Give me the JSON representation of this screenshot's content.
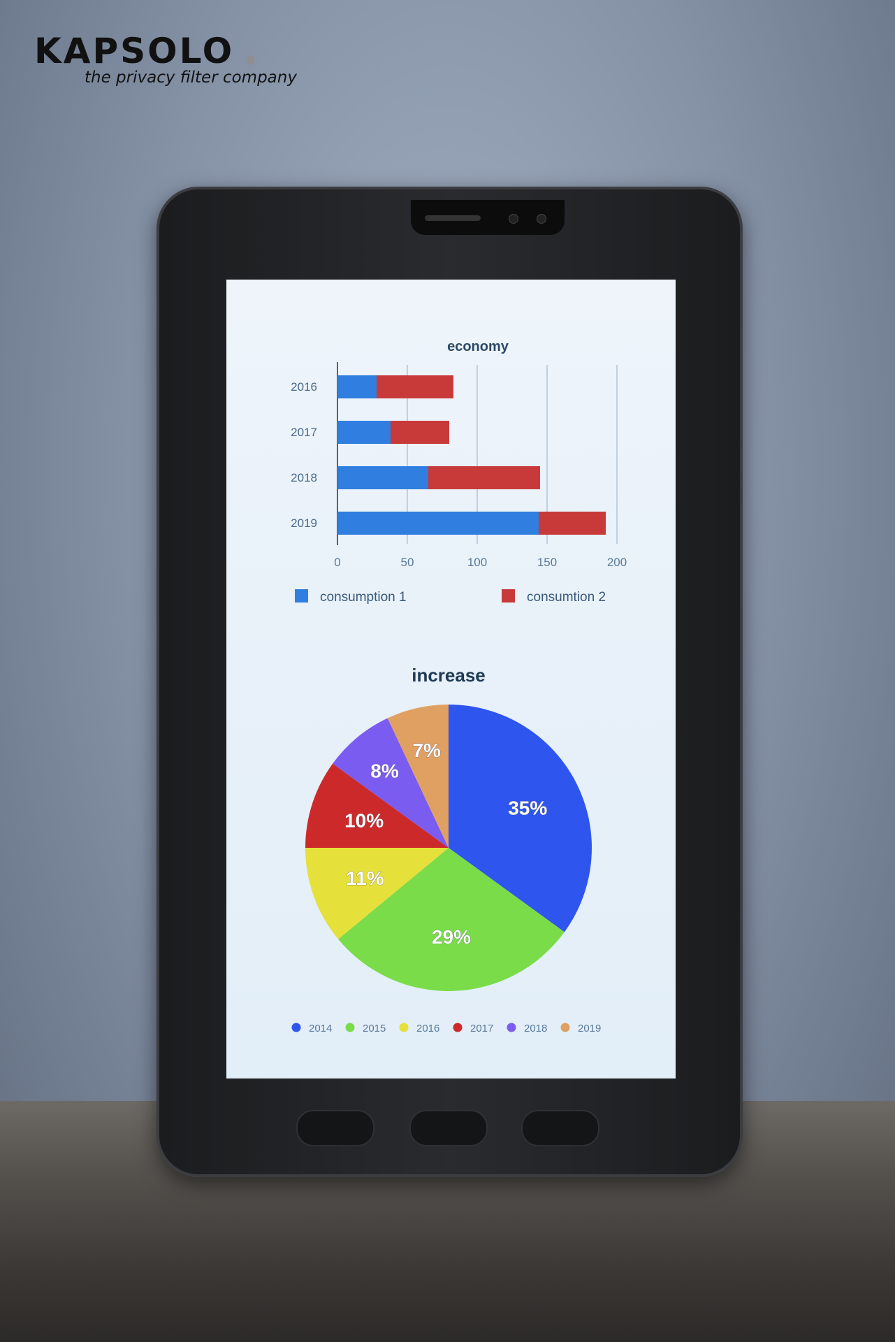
{
  "logo": {
    "brand": "KAPSOLO",
    "tagline": "the privacy filter company"
  },
  "chart_data": [
    {
      "type": "bar",
      "orientation": "horizontal",
      "stacked": true,
      "title": "economy",
      "categories": [
        "2016",
        "2017",
        "2018",
        "2019"
      ],
      "series": [
        {
          "name": "consumption  1",
          "color": "#2f7ee0",
          "values": [
            28,
            38,
            65,
            144
          ]
        },
        {
          "name": "consumtion 2",
          "color": "#c83a3a",
          "values": [
            55,
            42,
            80,
            48
          ]
        }
      ],
      "xlim": [
        0,
        200
      ],
      "xticks": [
        "0",
        "50",
        "100",
        "150",
        "200"
      ],
      "grid": true,
      "legend": "bottom"
    },
    {
      "type": "pie",
      "title": "increase",
      "slices": [
        {
          "label": "2014",
          "value": 35,
          "text": "35%",
          "color": "#2e55ee"
        },
        {
          "label": "2015",
          "value": 29,
          "text": "29%",
          "color": "#7bdc4a"
        },
        {
          "label": "2016",
          "value": 11,
          "text": "11%",
          "color": "#e6e03a"
        },
        {
          "label": "2017",
          "value": 10,
          "text": "10%",
          "color": "#cc2a2a"
        },
        {
          "label": "2018",
          "value": 8,
          "text": "8%",
          "color": "#7a5cf0"
        },
        {
          "label": "2019",
          "value": 7,
          "text": "7%",
          "color": "#e0a062"
        }
      ],
      "legend": "bottom"
    }
  ]
}
